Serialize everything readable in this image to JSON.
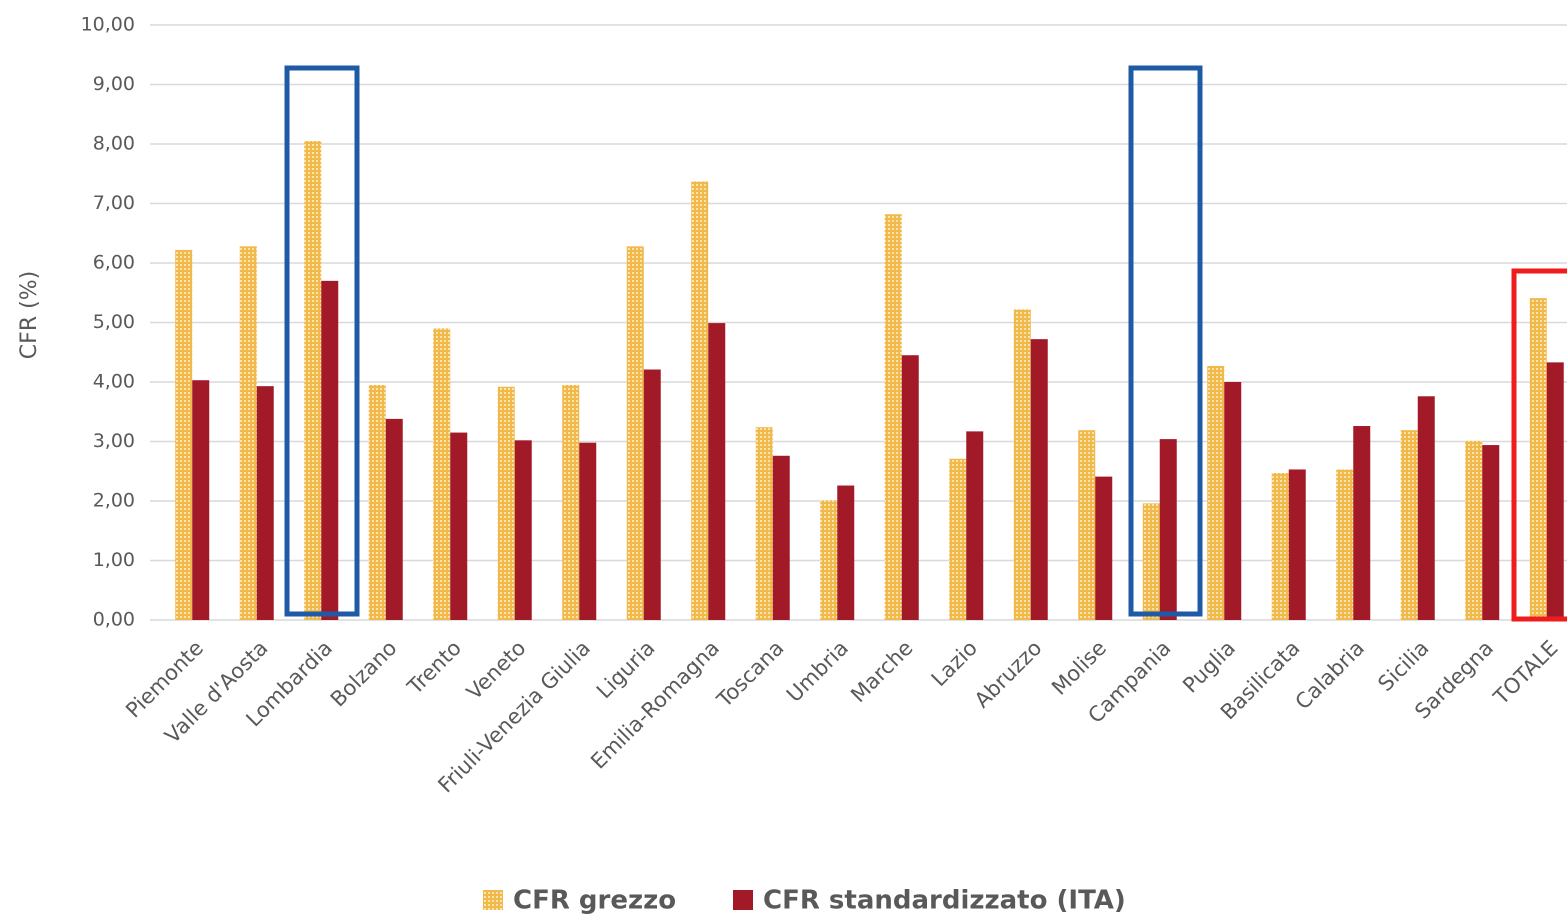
{
  "chart_data": {
    "type": "bar",
    "y_label": "CFR (%)",
    "categories": [
      "Piemonte",
      "Valle d'Aosta",
      "Lombardia",
      "Bolzano",
      "Trento",
      "Veneto",
      "Friuli-Venezia Giulia",
      "Liguria",
      "Emilia-Romagna",
      "Toscana",
      "Umbria",
      "Marche",
      "Lazio",
      "Abruzzo",
      "Molise",
      "Campania",
      "Puglia",
      "Basilicata",
      "Calabria",
      "Sicilia",
      "Sardegna",
      "TOTALE"
    ],
    "series": [
      {
        "name": "CFR grezzo",
        "color": "#f0b94a",
        "values": [
          6.22,
          6.28,
          8.05,
          3.95,
          4.9,
          3.92,
          3.95,
          6.28,
          7.37,
          3.24,
          2.01,
          6.82,
          2.71,
          5.22,
          3.19,
          1.96,
          4.27,
          2.47,
          2.53,
          3.19,
          3.01,
          5.41
        ]
      },
      {
        "name": "CFR standardizzato (ITA)",
        "color": "#a21a28",
        "values": [
          4.03,
          3.93,
          5.7,
          3.38,
          3.15,
          3.02,
          2.98,
          4.21,
          4.99,
          2.76,
          2.26,
          4.45,
          3.17,
          4.72,
          2.41,
          3.04,
          4.0,
          2.53,
          3.26,
          3.76,
          2.94,
          4.33
        ]
      }
    ],
    "ylim": [
      0,
      10
    ],
    "yticks": [
      {
        "value": 0,
        "label": "0,00"
      },
      {
        "value": 1,
        "label": "1,00"
      },
      {
        "value": 2,
        "label": "2,00"
      },
      {
        "value": 3,
        "label": "3,00"
      },
      {
        "value": 4,
        "label": "4,00"
      },
      {
        "value": 5,
        "label": "5,00"
      },
      {
        "value": 6,
        "label": "6,00"
      },
      {
        "value": 7,
        "label": "7,00"
      },
      {
        "value": 8,
        "label": "8,00"
      },
      {
        "value": 9,
        "label": "9,00"
      },
      {
        "value": 10,
        "label": "10,00"
      }
    ],
    "grid": true
  }
}
